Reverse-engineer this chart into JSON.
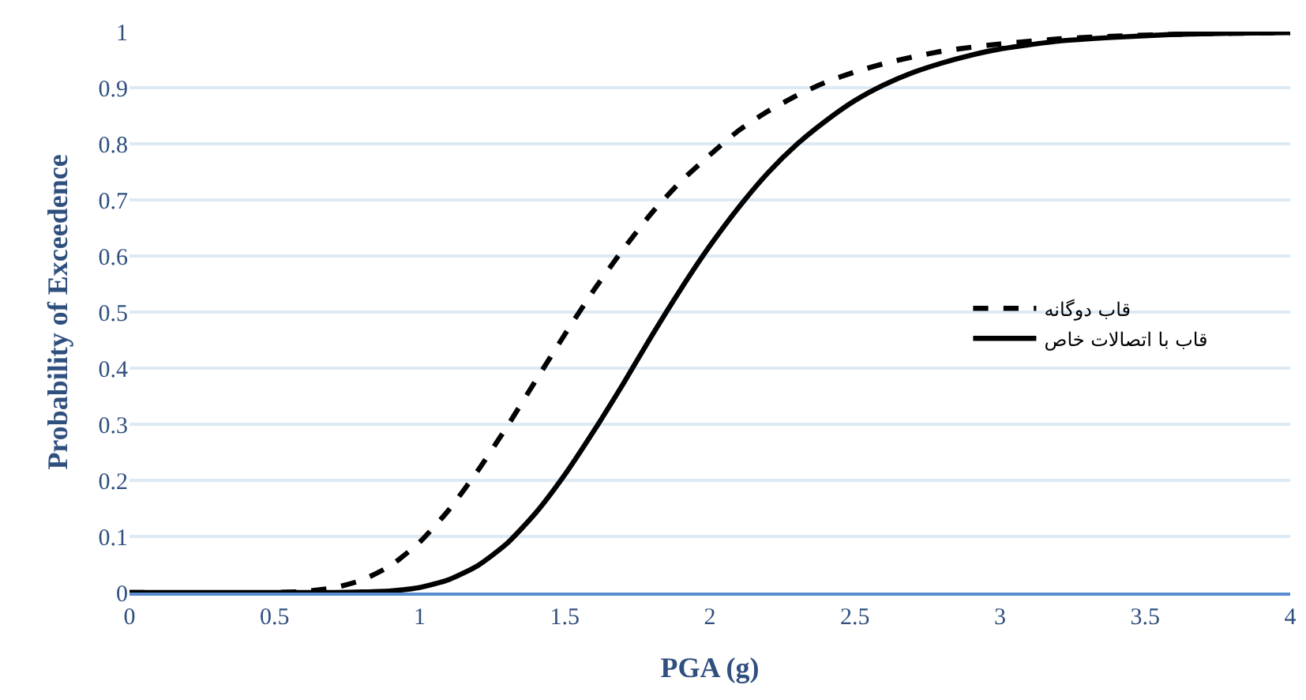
{
  "chart_data": {
    "type": "line",
    "xlabel": "PGA (g)",
    "ylabel": "Probability of Exceedence",
    "xlim": [
      0,
      4
    ],
    "ylim": [
      0,
      1
    ],
    "xticks": [
      0,
      0.5,
      1,
      1.5,
      2,
      2.5,
      3,
      3.5,
      4
    ],
    "yticks": [
      0,
      0.1,
      0.2,
      0.3,
      0.4,
      0.5,
      0.6,
      0.7,
      0.8,
      0.9,
      1
    ],
    "grid": "y",
    "legend": "right",
    "marker": "none",
    "x": [
      0,
      0.5,
      0.6,
      0.7,
      0.8,
      0.9,
      1.0,
      1.1,
      1.2,
      1.3,
      1.4,
      1.5,
      1.6,
      1.7,
      1.8,
      1.9,
      2.0,
      2.1,
      2.2,
      2.3,
      2.4,
      2.5,
      2.6,
      2.7,
      2.8,
      2.9,
      3.0,
      3.2,
      3.4,
      3.6,
      3.8,
      4.0
    ],
    "series": [
      {
        "name": "قاب دوگانه",
        "color": "#000000",
        "line_style": "dashed",
        "values": [
          0,
          0,
          0.002,
          0.008,
          0.022,
          0.048,
          0.09,
          0.147,
          0.217,
          0.295,
          0.378,
          0.46,
          0.539,
          0.611,
          0.677,
          0.733,
          0.78,
          0.824,
          0.858,
          0.886,
          0.91,
          0.928,
          0.943,
          0.955,
          0.965,
          0.972,
          0.978,
          0.987,
          0.992,
          0.995,
          0.997,
          0.998
        ]
      },
      {
        "name": "قاب با اتصالات خاص",
        "color": "#000000",
        "line_style": "solid",
        "values": [
          0,
          0,
          0,
          0,
          0.001,
          0.003,
          0.009,
          0.023,
          0.048,
          0.087,
          0.142,
          0.21,
          0.288,
          0.371,
          0.458,
          0.541,
          0.618,
          0.687,
          0.748,
          0.799,
          0.841,
          0.877,
          0.905,
          0.927,
          0.944,
          0.958,
          0.969,
          0.983,
          0.99,
          0.995,
          0.997,
          0.998
        ]
      }
    ]
  }
}
